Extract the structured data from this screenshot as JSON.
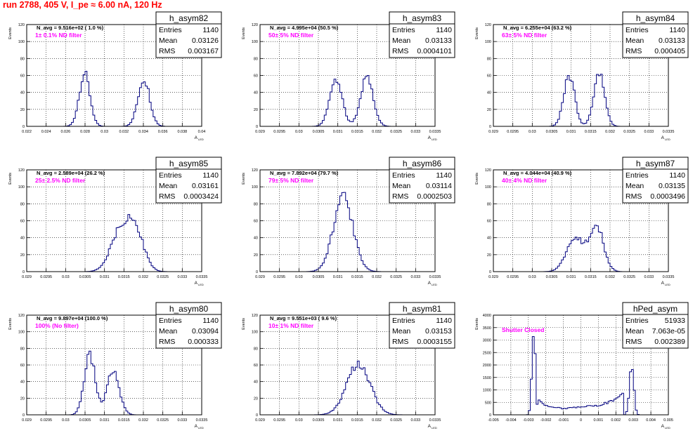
{
  "page_title": "run 2788,   405 V, I_pe ≈ 6.00 nA, 120 Hz",
  "stat_labels": {
    "entries": "Entries",
    "mean": "Mean",
    "rms": "RMS"
  },
  "ylabel": "Events",
  "xlabel": "A",
  "xlabel_sub": "LED",
  "colors": {
    "histogram": "#00007f",
    "annotation": "#ff00ff",
    "title": "#ff0000",
    "grid": "#000000"
  },
  "chart_data": [
    {
      "type": "bar",
      "title": "h_asym82",
      "annotation": "N_avg = 9.516e+02 ( 1.0 %)",
      "filter_label": "1± 0.1% ND filter",
      "stats": {
        "entries": "1140",
        "mean": "0.03126",
        "rms": "0.003167"
      },
      "xlim": [
        0.022,
        0.04
      ],
      "ylim": [
        0,
        120
      ],
      "xticks": [
        "0.022",
        "0.024",
        "0.026",
        "0.028",
        "0.03",
        "0.032",
        "0.034",
        "0.036",
        "0.038",
        "0.04"
      ],
      "yticks": [
        "0",
        "20",
        "40",
        "60",
        "80",
        "100",
        "120"
      ],
      "peaks": [
        {
          "center": 0.02795,
          "sigma": 0.00055,
          "height": 62
        },
        {
          "center": 0.03405,
          "sigma": 0.0006,
          "height": 56
        }
      ],
      "grid": true
    },
    {
      "type": "bar",
      "title": "h_asym83",
      "annotation": "N_avg = 4.995e+04 (50.5 %)",
      "filter_label": "50± 5% ND filter",
      "stats": {
        "entries": "1140",
        "mean": "0.03133",
        "rms": "0.0004101"
      },
      "xlim": [
        0.029,
        0.0335
      ],
      "ylim": [
        0,
        120
      ],
      "xticks": [
        "0.029",
        "0.0295",
        "0.03",
        "0.0305",
        "0.031",
        "0.0315",
        "0.032",
        "0.0325",
        "0.033",
        "0.0335"
      ],
      "yticks": [
        "0",
        "20",
        "40",
        "60",
        "80",
        "100",
        "120"
      ],
      "peaks": [
        {
          "center": 0.03095,
          "sigma": 0.00016,
          "height": 56
        },
        {
          "center": 0.03175,
          "sigma": 0.00016,
          "height": 60
        }
      ],
      "grid": true
    },
    {
      "type": "bar",
      "title": "h_asym84",
      "annotation": "N_avg = 6.255e+04 (63.2 %)",
      "filter_label": "63± 5% ND filter",
      "stats": {
        "entries": "1140",
        "mean": "0.03133",
        "rms": "0.000405"
      },
      "xlim": [
        0.029,
        0.0335
      ],
      "ylim": [
        0,
        120
      ],
      "xticks": [
        "0.029",
        "0.0295",
        "0.03",
        "0.0305",
        "0.031",
        "0.0315",
        "0.032",
        "0.0325",
        "0.033",
        "0.0335"
      ],
      "yticks": [
        "0",
        "20",
        "40",
        "60",
        "80",
        "100",
        "120"
      ],
      "peaks": [
        {
          "center": 0.03095,
          "sigma": 0.00014,
          "height": 60
        },
        {
          "center": 0.03172,
          "sigma": 0.00014,
          "height": 62
        }
      ],
      "grid": true
    },
    {
      "type": "bar",
      "title": "h_asym85",
      "annotation": "N_avg = 2.589e+04 (26.2 %)",
      "filter_label": "25± 2.5% ND filter",
      "stats": {
        "entries": "1140",
        "mean": "0.03161",
        "rms": "0.0003424"
      },
      "xlim": [
        0.029,
        0.0335
      ],
      "ylim": [
        0,
        120
      ],
      "xticks": [
        "0.029",
        "0.0295",
        "0.03",
        "0.0305",
        "0.031",
        "0.0315",
        "0.032",
        "0.0325",
        "0.033",
        "0.0335"
      ],
      "yticks": [
        "0",
        "20",
        "40",
        "60",
        "80",
        "100",
        "120"
      ],
      "peaks": [
        {
          "center": 0.0314,
          "sigma": 0.00025,
          "height": 46
        },
        {
          "center": 0.0318,
          "sigma": 0.00022,
          "height": 44
        }
      ],
      "grid": true
    },
    {
      "type": "bar",
      "title": "h_asym86",
      "annotation": "N_avg = 7.892e+04 (79.7 %)",
      "filter_label": "79± 5% ND filter",
      "stats": {
        "entries": "1140",
        "mean": "0.03114",
        "rms": "0.0002503"
      },
      "xlim": [
        0.029,
        0.0335
      ],
      "ylim": [
        0,
        120
      ],
      "xticks": [
        "0.029",
        "0.0295",
        "0.03",
        "0.0305",
        "0.031",
        "0.0315",
        "0.032",
        "0.0325",
        "0.033",
        "0.0335"
      ],
      "yticks": [
        "0",
        "20",
        "40",
        "60",
        "80",
        "100",
        "120"
      ],
      "peaks": [
        {
          "center": 0.03114,
          "sigma": 0.00025,
          "height": 88
        }
      ],
      "grid": true
    },
    {
      "type": "bar",
      "title": "h_asym87",
      "annotation": "N_avg = 4.044e+04 (40.9 %)",
      "filter_label": "40± 4% ND filter",
      "stats": {
        "entries": "1140",
        "mean": "0.03135",
        "rms": "0.0003496"
      },
      "xlim": [
        0.029,
        0.0335
      ],
      "ylim": [
        0,
        120
      ],
      "xticks": [
        "0.029",
        "0.0295",
        "0.03",
        "0.0305",
        "0.031",
        "0.0315",
        "0.032",
        "0.0325",
        "0.033",
        "0.0335"
      ],
      "yticks": [
        "0",
        "20",
        "40",
        "60",
        "80",
        "100",
        "120"
      ],
      "peaks": [
        {
          "center": 0.0311,
          "sigma": 0.00022,
          "height": 40
        },
        {
          "center": 0.03165,
          "sigma": 0.00018,
          "height": 54
        }
      ],
      "grid": true
    },
    {
      "type": "bar",
      "title": "h_asym80",
      "annotation": "N_avg = 9.897e+04 (100.0 %)",
      "filter_label": "100% (No filter)",
      "stats": {
        "entries": "1140",
        "mean": "0.03094",
        "rms": "0.000333"
      },
      "xlim": [
        0.029,
        0.0335
      ],
      "ylim": [
        0,
        120
      ],
      "xticks": [
        "0.029",
        "0.0295",
        "0.03",
        "0.0305",
        "0.031",
        "0.0315",
        "0.032",
        "0.0325",
        "0.033",
        "0.0335"
      ],
      "yticks": [
        "0",
        "20",
        "40",
        "60",
        "80",
        "100",
        "120"
      ],
      "peaks": [
        {
          "center": 0.03062,
          "sigma": 0.00014,
          "height": 72
        },
        {
          "center": 0.03122,
          "sigma": 0.00016,
          "height": 52
        }
      ],
      "grid": true
    },
    {
      "type": "bar",
      "title": "h_asym81",
      "annotation": "N_avg = 9.551e+03 ( 9.6 %)",
      "filter_label": "10± 1% ND filter",
      "stats": {
        "entries": "1140",
        "mean": "0.03153",
        "rms": "0.0003155"
      },
      "xlim": [
        0.029,
        0.0335
      ],
      "ylim": [
        0,
        120
      ],
      "xticks": [
        "0.029",
        "0.0295",
        "0.03",
        "0.0305",
        "0.031",
        "0.0315",
        "0.032",
        "0.0325",
        "0.033",
        "0.0335"
      ],
      "yticks": [
        "0",
        "20",
        "40",
        "60",
        "80",
        "100",
        "120"
      ],
      "peaks": [
        {
          "center": 0.03153,
          "sigma": 0.0003,
          "height": 62
        }
      ],
      "grid": true
    },
    {
      "type": "bar",
      "title": "hPed_asym",
      "annotation": "",
      "filter_label": "Shutter Closed",
      "stats": {
        "entries": "51933",
        "mean": "7.063e-05",
        "rms": "0.002389"
      },
      "xlim": [
        -0.005,
        0.005
      ],
      "ylim": [
        0,
        4000
      ],
      "xticks": [
        "-0.005",
        "-0.004",
        "-0.003",
        "-0.002",
        "-0.001",
        "0",
        "0.001",
        "0.002",
        "0.003",
        "0.004",
        "0.005"
      ],
      "yticks": [
        "0",
        "500",
        "1000",
        "1500",
        "2000",
        "2500",
        "3000",
        "3500",
        "4000"
      ],
      "peaks": [
        {
          "center": -0.0027,
          "sigma": 0.0001,
          "height": 3350
        },
        {
          "center": 0.0029,
          "sigma": 0.00012,
          "height": 2100
        }
      ],
      "baseline": [
        {
          "x": -0.0024,
          "y": 650
        },
        {
          "x": -0.002,
          "y": 380
        },
        {
          "x": -0.001,
          "y": 250
        },
        {
          "x": 0.0,
          "y": 320
        },
        {
          "x": 0.001,
          "y": 380
        },
        {
          "x": 0.002,
          "y": 600
        },
        {
          "x": 0.0024,
          "y": 900
        }
      ],
      "grid": true
    }
  ]
}
